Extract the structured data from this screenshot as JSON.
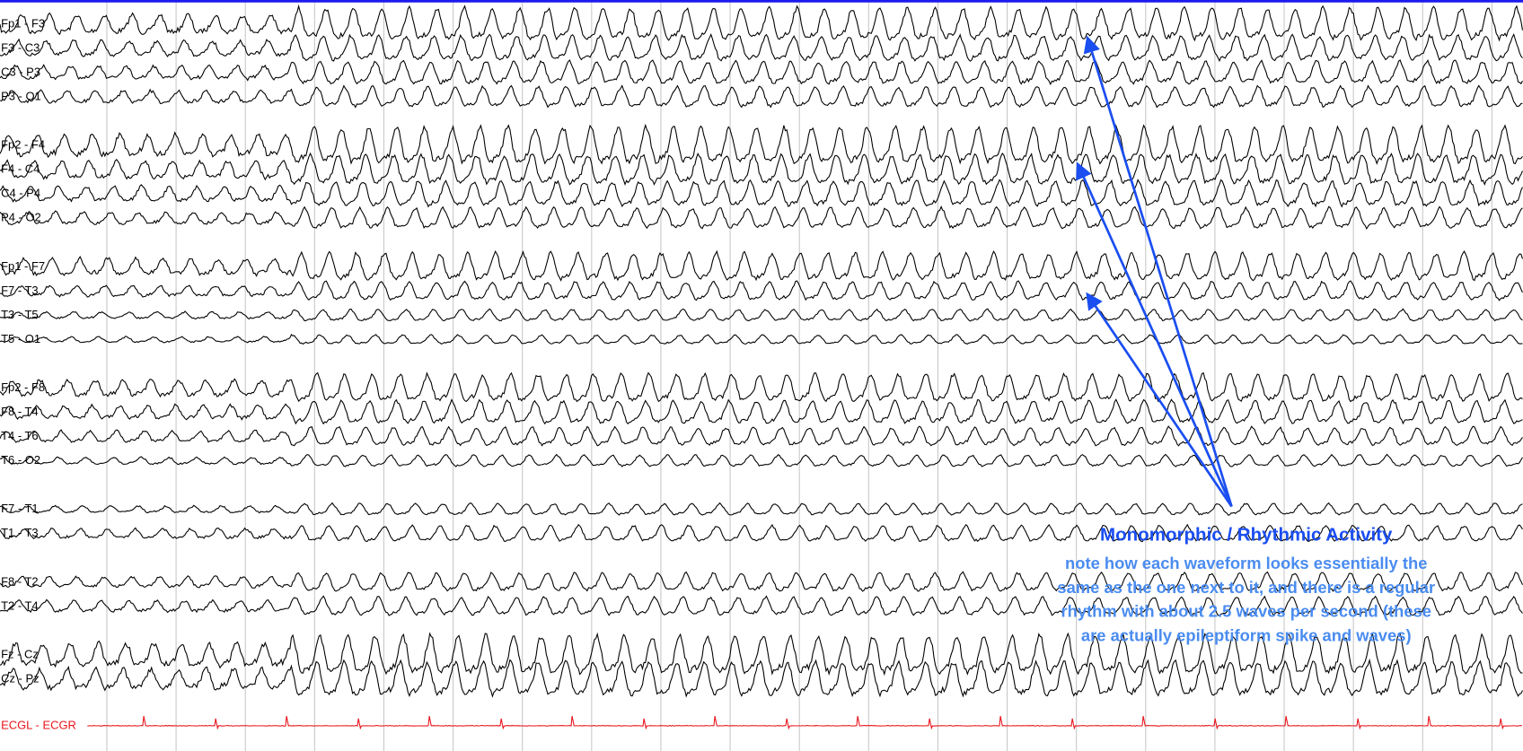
{
  "channels": [
    "Fp1 - F3",
    "F3 - C3",
    "C3 - P3",
    "P3 - O1",
    "Fp2 - F4",
    "F4 - C4",
    "C4 - P4",
    "P4 - O2",
    "Fp1 - F7",
    "F7 - T3",
    "T3 - T5",
    "T5 - O1",
    "Fp2 - F8",
    "F8 - T4",
    "T4 - T6",
    "T6 - O2",
    "F7 - T1",
    "T1 - T3",
    "F8 - T2",
    "T2 - T4",
    "Fz - Cz",
    "Cz - Pz",
    "ECGL - ECGR"
  ],
  "annotation": {
    "title": "Monomorphic / Rhythmic Activity",
    "lines": [
      "note how each waveform looks essentially the",
      "same as the one next to it, and there is a regular",
      "rhythm with about 2.5 waves per second (these",
      "are actually epileptiform spike and waves)"
    ]
  }
}
